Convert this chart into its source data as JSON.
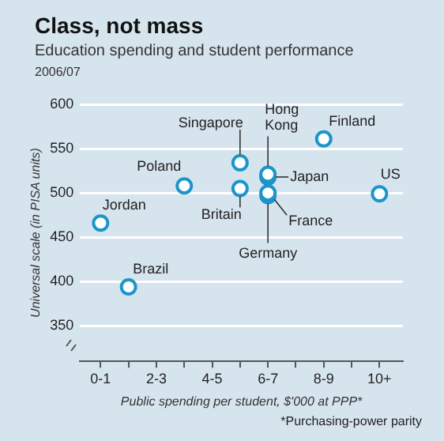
{
  "chart_data": {
    "type": "scatter",
    "title": "Class, not mass",
    "subtitle": "Education spending and student performance\n2006/07",
    "xlabel": "Public spending per student, $'000 at PPP*",
    "ylabel": "Universal scale (in PISA units)",
    "categories": [
      "0-1",
      null,
      "2-3",
      null,
      "4-5",
      null,
      "6-7",
      null,
      "8-9",
      null,
      "10+"
    ],
    "series": [
      {
        "name": "Jordan",
        "color": "#1a96c8",
        "values": [
          466,
          null,
          null,
          null,
          null,
          null,
          null,
          null,
          null,
          null,
          null
        ]
      },
      {
        "name": "Brazil",
        "color": "#1a96c8",
        "values": [
          null,
          394,
          null,
          null,
          null,
          null,
          null,
          null,
          null,
          null,
          null
        ]
      },
      {
        "name": "Poland",
        "color": "#1a96c8",
        "values": [
          null,
          null,
          null,
          508,
          null,
          null,
          null,
          null,
          null,
          null,
          null
        ]
      },
      {
        "name": "Singapore",
        "color": "#1a96c8",
        "values": [
          null,
          null,
          null,
          null,
          null,
          534,
          null,
          null,
          null,
          null,
          null
        ]
      },
      {
        "name": "Britain",
        "color": "#1a96c8",
        "values": [
          null,
          null,
          null,
          null,
          null,
          505,
          null,
          null,
          null,
          null,
          null
        ]
      },
      {
        "name": "Hong Kong",
        "color": "#1a96c8",
        "values": [
          null,
          null,
          null,
          null,
          null,
          null,
          521,
          null,
          null,
          null,
          null
        ]
      },
      {
        "name": "Japan",
        "color": "#1a96c8",
        "values": [
          null,
          null,
          null,
          null,
          null,
          null,
          518,
          null,
          null,
          null,
          null
        ]
      },
      {
        "name": "France",
        "color": "#1a96c8",
        "values": [
          null,
          null,
          null,
          null,
          null,
          null,
          500,
          null,
          null,
          null,
          null
        ]
      },
      {
        "name": "Germany",
        "color": "#1a96c8",
        "values": [
          null,
          null,
          null,
          null,
          null,
          null,
          497,
          null,
          null,
          null,
          null
        ]
      },
      {
        "name": "Finland",
        "color": "#1a96c8",
        "values": [
          null,
          null,
          null,
          null,
          null,
          null,
          null,
          null,
          561,
          null,
          null
        ]
      },
      {
        "name": "US",
        "color": "#1a96c8",
        "values": [
          null,
          null,
          null,
          null,
          null,
          null,
          null,
          null,
          null,
          null,
          499
        ]
      }
    ],
    "marker": "circle",
    "grid": "y",
    "ylim": [
      310,
      600
    ],
    "yticks": [
      350,
      400,
      450,
      500,
      550,
      600
    ],
    "annotations": [
      "*Purchasing-power parity"
    ]
  }
}
